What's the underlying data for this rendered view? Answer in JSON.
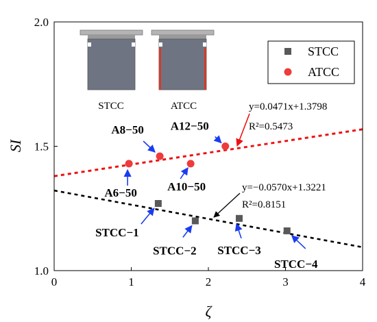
{
  "chart_data": {
    "type": "scatter",
    "xlabel": "ζ",
    "ylabel": "SI",
    "xlim": [
      0,
      4
    ],
    "ylim": [
      1.0,
      2.0
    ],
    "x_ticks": [
      "0",
      "1",
      "2",
      "3",
      "4"
    ],
    "y_ticks": [
      "1.0",
      "1.5",
      "2.0"
    ],
    "legend_position": "top-right",
    "grid": false,
    "series": [
      {
        "name": "STCC",
        "marker": "square",
        "color": "#595959",
        "points": [
          {
            "x": 1.35,
            "y": 1.27,
            "label": "STCC−1"
          },
          {
            "x": 1.83,
            "y": 1.2,
            "label": "STCC−2"
          },
          {
            "x": 2.4,
            "y": 1.21,
            "label": "STCC−3"
          },
          {
            "x": 3.02,
            "y": 1.16,
            "label": "STCC−4"
          }
        ],
        "fit": {
          "slope": -0.057,
          "intercept": 1.3221,
          "equation": "y=−0.0570x+1.3221",
          "r2_label": "R²=0.8151",
          "color": "#000000"
        }
      },
      {
        "name": "ATCC",
        "marker": "circle",
        "color": "#ee3b3b",
        "points": [
          {
            "x": 0.97,
            "y": 1.43,
            "label": "A6−50"
          },
          {
            "x": 1.37,
            "y": 1.46,
            "label": "A8−50"
          },
          {
            "x": 1.77,
            "y": 1.43,
            "label": "A10−50"
          },
          {
            "x": 2.22,
            "y": 1.5,
            "label": "A12−50"
          }
        ],
        "fit": {
          "slope": 0.0471,
          "intercept": 1.3798,
          "equation": "y=0.0471x+1.3798",
          "r2_label": "R²=0.5473",
          "color": "#ee1111"
        }
      }
    ]
  },
  "inset": {
    "left_label": "STCC",
    "right_label": "ATCC"
  },
  "colors": {
    "annotation_arrow": "#1a3cf0",
    "fit_arrow_black": "#000000",
    "fit_arrow_red": "#ee1111"
  }
}
